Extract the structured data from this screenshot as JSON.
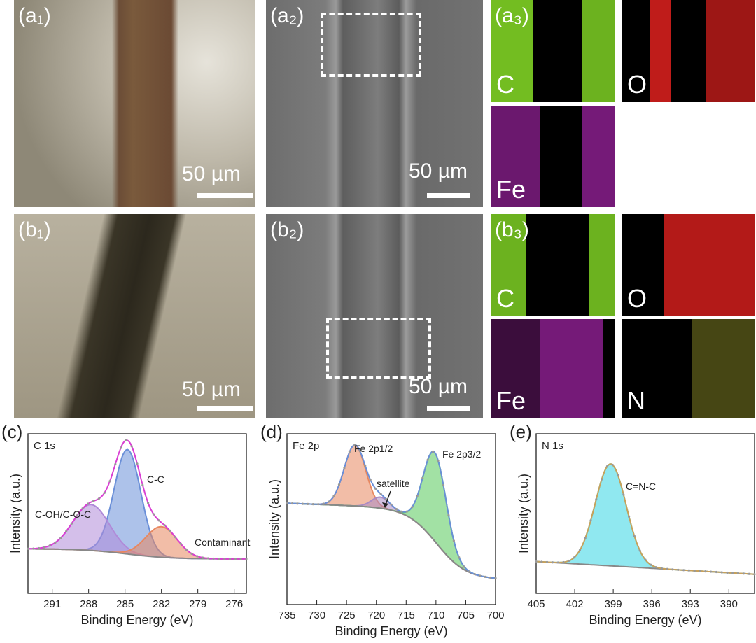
{
  "top_row": {
    "a1": {
      "label": "(a₁)",
      "scale": "50 µm"
    },
    "a2": {
      "label": "(a₂)",
      "scale": "50 µm"
    },
    "a3": {
      "label": "(a₃)",
      "maps": [
        "C",
        "O",
        "Fe"
      ]
    }
  },
  "middle_row": {
    "b1": {
      "label": "(b₁)",
      "scale": "50 µm"
    },
    "b2": {
      "label": "(b₂)",
      "scale": "50 µm"
    },
    "b3": {
      "label": "(b₃)",
      "maps": [
        "C",
        "O",
        "Fe",
        "N"
      ]
    }
  },
  "map_colors": {
    "C": "#7fd125",
    "O": "#e0211e",
    "Fe": "#c32bc8",
    "N": "#c9c93a"
  },
  "chart_data": [
    {
      "panel_label": "(c)",
      "type": "line",
      "title": "C 1s",
      "xlabel": "Binding Energy (eV)",
      "ylabel": "Intensity (a.u.)",
      "xlim": [
        293,
        275
      ],
      "xticks": [
        291,
        288,
        285,
        282,
        279,
        276
      ],
      "annotations": [
        "C-C",
        "C-OH/C-O-C",
        "Contaminant"
      ],
      "series": [
        {
          "name": "C-C",
          "color": "#6a8fd8",
          "center": 284.8,
          "height": 0.82,
          "width": 1.1
        },
        {
          "name": "C-OH/C-O-C",
          "color": "#b08ad8",
          "center": 287.8,
          "height": 0.36,
          "width": 1.5
        },
        {
          "name": "Contaminant",
          "color": "#e8875f",
          "center": 282.0,
          "height": 0.24,
          "width": 1.3
        }
      ]
    },
    {
      "panel_label": "(d)",
      "type": "line",
      "title": "Fe 2p",
      "xlabel": "Binding Energy (eV)",
      "ylabel": "Intensity (a.u.)",
      "xlim": [
        735,
        700
      ],
      "xticks": [
        735,
        730,
        725,
        720,
        715,
        710,
        705,
        700
      ],
      "annotations": [
        "Fe 2p1/2",
        "satellite",
        "Fe 2p3/2"
      ],
      "series": [
        {
          "name": "Fe 2p1/2",
          "color": "#e8875f",
          "center": 723.6,
          "height": 0.44,
          "width": 1.8
        },
        {
          "name": "satellite",
          "color": "#a98ac4",
          "center": 719.3,
          "height": 0.08,
          "width": 1.5
        },
        {
          "name": "Fe 2p3/2",
          "color": "#55c95a",
          "center": 710.2,
          "height": 0.64,
          "width": 1.9
        }
      ]
    },
    {
      "panel_label": "(e)",
      "type": "line",
      "title": "N 1s",
      "xlabel": "Binding Energy (eV)",
      "ylabel": "Intensity (a.u.)",
      "xlim": [
        405,
        388
      ],
      "xticks": [
        405,
        402,
        399,
        396,
        393,
        390
      ],
      "annotations": [
        "C=N-C"
      ],
      "series": [
        {
          "name": "C=N-C",
          "color": "#35d6e4",
          "center": 399.2,
          "height": 0.8,
          "width": 1.2
        }
      ]
    }
  ]
}
